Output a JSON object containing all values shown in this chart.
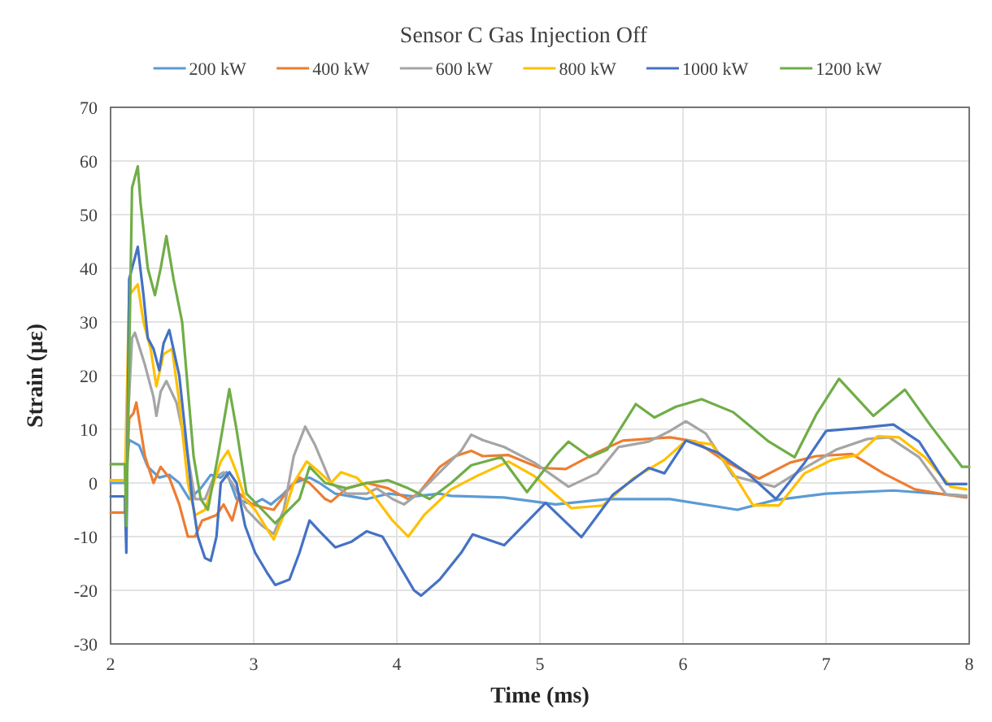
{
  "chart_data": {
    "type": "line",
    "title": "Sensor C Gas Injection  Off",
    "xlabel": "Time (ms)",
    "ylabel": "Strain (με)",
    "xlim": [
      2,
      8
    ],
    "xticks": [
      2,
      3,
      4,
      5,
      6,
      7,
      8
    ],
    "ylim": [
      -30,
      70
    ],
    "yticks": [
      -30,
      -20,
      -10,
      0,
      10,
      20,
      30,
      40,
      50,
      60,
      70
    ],
    "grid": true,
    "legend": "top",
    "marker": "none",
    "line_style": "solid",
    "series": [
      {
        "name": "200 kW",
        "color": "#5b9bd5",
        "x": [
          2,
          2.1,
          2.13,
          2.2,
          2.26,
          2.34,
          2.41,
          2.48,
          2.55,
          2.63,
          2.7,
          2.77,
          2.81,
          2.88,
          2.99,
          3.06,
          3.12,
          3.21,
          3.28,
          3.39,
          3.46,
          3.57,
          3.79,
          3.94,
          4.12,
          4.3,
          4.38,
          4.75,
          5.11,
          5.47,
          5.91,
          6.38,
          6.64,
          7,
          7.47,
          7.98
        ],
        "values": [
          0,
          0,
          8,
          7,
          3,
          1,
          1.5,
          0,
          -3,
          -1,
          1.5,
          1,
          2,
          -3,
          -4,
          -3,
          -4,
          -2,
          0,
          1,
          0,
          -2,
          -3,
          -2,
          -2.5,
          -2,
          -2.4,
          -2.7,
          -4,
          -3,
          -3,
          -5,
          -3.2,
          -2,
          -1.4,
          -2.4
        ]
      },
      {
        "name": "400 kW",
        "color": "#ed7d31",
        "x": [
          2,
          2.1,
          2.13,
          2.16,
          2.18,
          2.21,
          2.24,
          2.3,
          2.35,
          2.41,
          2.48,
          2.54,
          2.59,
          2.64,
          2.74,
          2.79,
          2.85,
          2.9,
          2.99,
          3.06,
          3.14,
          3.25,
          3.32,
          3.39,
          3.5,
          3.54,
          3.65,
          3.79,
          3.94,
          4.08,
          4.15,
          4.3,
          4.41,
          4.52,
          4.6,
          4.78,
          5,
          5.18,
          5.4,
          5.58,
          5.91,
          6.09,
          6.31,
          6.53,
          6.75,
          6.93,
          7.18,
          7.4,
          7.62,
          7.84,
          7.98
        ],
        "values": [
          -5.5,
          -5.5,
          12,
          13,
          15,
          10,
          5,
          0,
          3,
          1,
          -4,
          -10,
          -10,
          -7,
          -6,
          -4,
          -7,
          -2,
          -4,
          -4.5,
          -5,
          -1,
          1,
          0,
          -3,
          -3.5,
          -1,
          0,
          -1,
          -3,
          -2,
          3,
          5,
          6,
          5,
          5.2,
          2.8,
          2.6,
          5.7,
          7.9,
          8.5,
          7.7,
          3.8,
          0.8,
          3.8,
          5,
          5.4,
          1.8,
          -1.2,
          -2.2,
          -2.7
        ]
      },
      {
        "name": "600 kW",
        "color": "#a5a5a5",
        "x": [
          2,
          2.1,
          2.15,
          2.17,
          2.24,
          2.3,
          2.32,
          2.35,
          2.39,
          2.46,
          2.54,
          2.59,
          2.66,
          2.72,
          2.79,
          2.85,
          2.95,
          3.06,
          3.14,
          3.21,
          3.28,
          3.36,
          3.43,
          3.54,
          3.65,
          3.79,
          3.86,
          3.97,
          4.05,
          4.15,
          4.3,
          4.45,
          4.52,
          4.6,
          4.75,
          4.96,
          5.2,
          5.4,
          5.55,
          5.76,
          5.91,
          6.02,
          6.16,
          6.35,
          6.64,
          6.85,
          7.07,
          7.29,
          7.44,
          7.65,
          7.84,
          7.98
        ],
        "values": [
          0.5,
          0.5,
          27,
          28,
          22,
          16,
          12.5,
          17,
          19,
          15,
          5,
          -3,
          -3,
          1,
          2,
          0,
          -5,
          -8,
          -9.5,
          -5,
          5,
          10.5,
          7,
          0,
          -2,
          -2,
          -1,
          -3,
          -4,
          -2,
          2,
          6,
          9,
          8,
          6.7,
          3.8,
          -0.7,
          1.8,
          6.7,
          7.7,
          9.7,
          11.5,
          9.2,
          1.3,
          -0.7,
          2.8,
          6.2,
          8.2,
          8.5,
          4.8,
          -2.2,
          -2.4
        ]
      },
      {
        "name": "800 kW",
        "color": "#ffc000",
        "x": [
          2,
          2.1,
          2.13,
          2.19,
          2.23,
          2.28,
          2.32,
          2.37,
          2.43,
          2.48,
          2.54,
          2.59,
          2.66,
          2.72,
          2.77,
          2.82,
          2.88,
          2.94,
          3.01,
          3.08,
          3.14,
          3.21,
          3.28,
          3.37,
          3.46,
          3.54,
          3.61,
          3.72,
          3.83,
          3.97,
          4.08,
          4.19,
          4.38,
          4.56,
          4.78,
          4.96,
          5.22,
          5.44,
          5.65,
          5.87,
          6.02,
          6.2,
          6.35,
          6.49,
          6.67,
          6.85,
          7.04,
          7.22,
          7.36,
          7.51,
          7.69,
          7.87,
          7.98
        ],
        "values": [
          0.5,
          0.5,
          35,
          37,
          30,
          25,
          18,
          24,
          25,
          15,
          0,
          -6,
          -5,
          0,
          4,
          6,
          2,
          -3,
          -5,
          -8,
          -10.5,
          -6,
          0,
          4,
          2,
          0,
          2,
          1,
          -2,
          -7,
          -10,
          -6,
          -1.2,
          1.3,
          4,
          1.3,
          -4.7,
          -4.2,
          0.8,
          4.3,
          7.9,
          7.2,
          1.8,
          -4.2,
          -4.2,
          1.8,
          4.3,
          5.2,
          8.7,
          8.5,
          4.8,
          -0.7,
          -1.2
        ]
      },
      {
        "name": "1000 kW",
        "color": "#4472c4",
        "x": [
          2,
          2.1,
          2.11,
          2.13,
          2.17,
          2.19,
          2.23,
          2.26,
          2.3,
          2.34,
          2.37,
          2.41,
          2.48,
          2.54,
          2.57,
          2.61,
          2.66,
          2.7,
          2.74,
          2.77,
          2.83,
          2.88,
          2.94,
          3.01,
          3.1,
          3.15,
          3.25,
          3.32,
          3.39,
          3.46,
          3.57,
          3.68,
          3.79,
          3.9,
          4.01,
          4.12,
          4.17,
          4.3,
          4.45,
          4.53,
          4.75,
          5.04,
          5.29,
          5.51,
          5.76,
          5.87,
          6.02,
          6.24,
          6.45,
          6.65,
          6.85,
          7,
          7.22,
          7.47,
          7.65,
          7.84,
          7.98
        ],
        "values": [
          -2.5,
          -2.5,
          -13,
          38,
          42,
          44,
          35,
          27,
          25,
          21,
          26,
          28.5,
          20,
          5,
          -3,
          -10,
          -14,
          -14.5,
          -10,
          0,
          2,
          0,
          -8,
          -13,
          -17,
          -19,
          -18,
          -13,
          -7,
          -9,
          -12,
          -11,
          -9,
          -10,
          -15,
          -20,
          -21,
          -18,
          -13,
          -9.6,
          -11.6,
          -3.7,
          -10.1,
          -2.2,
          2.8,
          1.8,
          7.9,
          5.7,
          1.8,
          -3,
          3.8,
          9.7,
          10.2,
          10.9,
          7.7,
          -0.2,
          -0.2
        ]
      },
      {
        "name": "1200 kW",
        "color": "#70ad47",
        "x": [
          2,
          2.1,
          2.11,
          2.15,
          2.17,
          2.19,
          2.21,
          2.26,
          2.31,
          2.35,
          2.39,
          2.44,
          2.5,
          2.58,
          2.63,
          2.68,
          2.75,
          2.83,
          2.88,
          2.95,
          3.06,
          3.15,
          3.32,
          3.39,
          3.5,
          3.65,
          3.79,
          3.94,
          4.08,
          4.23,
          4.38,
          4.52,
          4.73,
          4.91,
          5.11,
          5.2,
          5.35,
          5.47,
          5.67,
          5.8,
          5.95,
          6.13,
          6.35,
          6.6,
          6.78,
          6.93,
          7.09,
          7.33,
          7.55,
          7.73,
          7.95,
          8
        ],
        "values": [
          3.5,
          3.5,
          -8,
          55,
          57,
          59,
          52,
          40,
          35,
          40,
          46,
          38,
          30,
          5,
          -3,
          -5,
          5,
          17.5,
          10,
          -2,
          -5,
          -7.5,
          -3,
          3,
          0,
          -1,
          0,
          0.5,
          -1,
          -3,
          0,
          3.3,
          4.8,
          -1.7,
          5.2,
          7.7,
          4.8,
          6.2,
          14.7,
          12.2,
          14.2,
          15.6,
          13.2,
          7.7,
          4.8,
          12.7,
          19.4,
          12.5,
          17.4,
          10.7,
          3,
          3
        ]
      }
    ]
  }
}
